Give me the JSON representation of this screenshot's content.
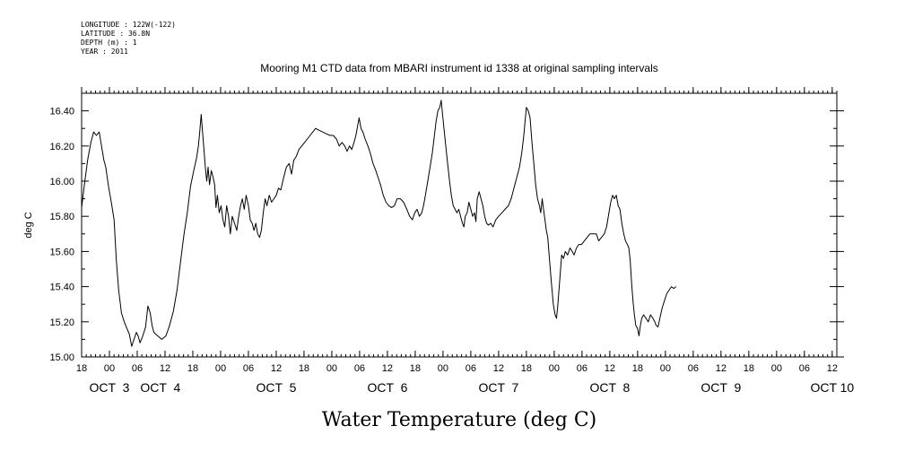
{
  "header": {
    "longitude": "LONGITUDE : 122W(-122)",
    "latitude": "LATITUDE : 36.8N",
    "depth": "DEPTH (m) : 1",
    "year": "YEAR : 2011"
  },
  "chart_data": {
    "type": "line",
    "title": "Mooring M1 CTD data from MBARI instrument id 1338 at original sampling intervals",
    "xlabel": "Water Temperature (deg C)",
    "ylabel": "deg C",
    "x_unit": "hours since OCT 2 00:00 (2011)",
    "xlim": [
      18,
      181
    ],
    "ylim": [
      15.0,
      16.5
    ],
    "y_ticks": [
      15.0,
      15.2,
      15.4,
      15.6,
      15.8,
      16.0,
      16.2,
      16.4
    ],
    "y_tick_labels": [
      "15.00",
      "15.20",
      "15.40",
      "15.60",
      "15.80",
      "16.00",
      "16.20",
      "16.40"
    ],
    "x_hour_ticks": [
      18,
      24,
      30,
      36,
      42,
      48,
      54,
      60,
      66,
      72,
      78,
      84,
      90,
      96,
      102,
      108,
      114,
      120,
      126,
      132,
      138,
      144,
      150,
      156,
      162,
      168,
      174,
      180
    ],
    "x_hour_tick_labels": [
      "18",
      "00",
      "06",
      "12",
      "18",
      "00",
      "06",
      "12",
      "18",
      "00",
      "06",
      "12",
      "18",
      "00",
      "06",
      "12",
      "18",
      "00",
      "06",
      "12",
      "18",
      "00",
      "06",
      "12",
      "18",
      "00",
      "06",
      "12"
    ],
    "day_labels": [
      {
        "label": "OCT  3",
        "x": 24
      },
      {
        "label": "OCT  4",
        "x": 35
      },
      {
        "label": "OCT  5",
        "x": 60
      },
      {
        "label": "OCT  6",
        "x": 84
      },
      {
        "label": "OCT  7",
        "x": 108
      },
      {
        "label": "OCT  8",
        "x": 132
      },
      {
        "label": "OCT  9",
        "x": 156
      },
      {
        "label": "OCT 10",
        "x": 180
      }
    ],
    "grid": false,
    "series": [
      {
        "points": [
          [
            18.0,
            15.85
          ],
          [
            18.6,
            15.98
          ],
          [
            19.3,
            16.12
          ],
          [
            20.0,
            16.22
          ],
          [
            20.6,
            16.28
          ],
          [
            21.2,
            16.26
          ],
          [
            21.8,
            16.28
          ],
          [
            22.3,
            16.2
          ],
          [
            22.8,
            16.12
          ],
          [
            23.2,
            16.08
          ],
          [
            23.8,
            15.97
          ],
          [
            24.4,
            15.88
          ],
          [
            25.0,
            15.78
          ],
          [
            25.5,
            15.55
          ],
          [
            26.0,
            15.38
          ],
          [
            26.6,
            15.25
          ],
          [
            27.2,
            15.2
          ],
          [
            27.8,
            15.16
          ],
          [
            28.3,
            15.13
          ],
          [
            28.8,
            15.06
          ],
          [
            29.3,
            15.1
          ],
          [
            29.8,
            15.14
          ],
          [
            30.2,
            15.12
          ],
          [
            30.6,
            15.08
          ],
          [
            31.2,
            15.12
          ],
          [
            31.8,
            15.17
          ],
          [
            32.3,
            15.29
          ],
          [
            32.8,
            15.25
          ],
          [
            33.2,
            15.18
          ],
          [
            33.6,
            15.14
          ],
          [
            34.4,
            15.12
          ],
          [
            35.3,
            15.1
          ],
          [
            36.2,
            15.12
          ],
          [
            37.0,
            15.18
          ],
          [
            37.8,
            15.26
          ],
          [
            38.6,
            15.38
          ],
          [
            39.4,
            15.55
          ],
          [
            40.1,
            15.7
          ],
          [
            40.8,
            15.82
          ],
          [
            41.5,
            15.97
          ],
          [
            42.2,
            16.06
          ],
          [
            42.8,
            16.13
          ],
          [
            43.2,
            16.2
          ],
          [
            43.5,
            16.28
          ],
          [
            43.8,
            16.38
          ],
          [
            44.1,
            16.28
          ],
          [
            44.4,
            16.18
          ],
          [
            44.7,
            16.08
          ],
          [
            45.0,
            16.0
          ],
          [
            45.3,
            16.08
          ],
          [
            45.6,
            15.98
          ],
          [
            46.0,
            16.06
          ],
          [
            46.4,
            16.02
          ],
          [
            46.7,
            15.98
          ],
          [
            47.0,
            15.85
          ],
          [
            47.3,
            15.92
          ],
          [
            47.7,
            15.82
          ],
          [
            48.1,
            15.86
          ],
          [
            48.5,
            15.78
          ],
          [
            48.9,
            15.74
          ],
          [
            49.3,
            15.86
          ],
          [
            49.7,
            15.8
          ],
          [
            50.1,
            15.7
          ],
          [
            50.5,
            15.8
          ],
          [
            51.0,
            15.76
          ],
          [
            51.5,
            15.72
          ],
          [
            51.9,
            15.8
          ],
          [
            52.3,
            15.86
          ],
          [
            52.7,
            15.9
          ],
          [
            53.1,
            15.84
          ],
          [
            53.5,
            15.92
          ],
          [
            54.0,
            15.86
          ],
          [
            54.4,
            15.78
          ],
          [
            54.8,
            15.76
          ],
          [
            55.2,
            15.72
          ],
          [
            55.6,
            15.76
          ],
          [
            56.0,
            15.7
          ],
          [
            56.4,
            15.68
          ],
          [
            56.8,
            15.72
          ],
          [
            57.2,
            15.82
          ],
          [
            57.6,
            15.9
          ],
          [
            58.0,
            15.86
          ],
          [
            58.5,
            15.92
          ],
          [
            59.0,
            15.88
          ],
          [
            59.5,
            15.9
          ],
          [
            60.0,
            15.92
          ],
          [
            60.5,
            15.96
          ],
          [
            61.0,
            15.95
          ],
          [
            61.6,
            16.02
          ],
          [
            62.2,
            16.08
          ],
          [
            62.8,
            16.1
          ],
          [
            63.3,
            16.04
          ],
          [
            63.8,
            16.12
          ],
          [
            64.3,
            16.14
          ],
          [
            64.9,
            16.18
          ],
          [
            65.5,
            16.2
          ],
          [
            66.1,
            16.22
          ],
          [
            66.7,
            16.24
          ],
          [
            67.3,
            16.26
          ],
          [
            67.9,
            16.28
          ],
          [
            68.5,
            16.3
          ],
          [
            69.2,
            16.29
          ],
          [
            70.0,
            16.28
          ],
          [
            70.8,
            16.27
          ],
          [
            71.6,
            16.26
          ],
          [
            72.3,
            16.26
          ],
          [
            73.0,
            16.24
          ],
          [
            73.6,
            16.2
          ],
          [
            74.2,
            16.22
          ],
          [
            74.8,
            16.2
          ],
          [
            75.3,
            16.17
          ],
          [
            75.8,
            16.2
          ],
          [
            76.3,
            16.18
          ],
          [
            76.8,
            16.22
          ],
          [
            77.2,
            16.26
          ],
          [
            77.6,
            16.32
          ],
          [
            77.9,
            16.36
          ],
          [
            78.3,
            16.3
          ],
          [
            78.7,
            16.28
          ],
          [
            79.2,
            16.24
          ],
          [
            79.8,
            16.2
          ],
          [
            80.3,
            16.16
          ],
          [
            80.9,
            16.1
          ],
          [
            81.5,
            16.06
          ],
          [
            82.0,
            16.02
          ],
          [
            82.5,
            15.98
          ],
          [
            83.1,
            15.92
          ],
          [
            83.7,
            15.88
          ],
          [
            84.3,
            15.86
          ],
          [
            84.9,
            15.85
          ],
          [
            85.5,
            15.86
          ],
          [
            86.1,
            15.9
          ],
          [
            86.8,
            15.9
          ],
          [
            87.5,
            15.88
          ],
          [
            88.2,
            15.84
          ],
          [
            88.8,
            15.8
          ],
          [
            89.4,
            15.78
          ],
          [
            89.9,
            15.82
          ],
          [
            90.4,
            15.84
          ],
          [
            90.9,
            15.8
          ],
          [
            91.4,
            15.82
          ],
          [
            91.8,
            15.86
          ],
          [
            92.2,
            15.92
          ],
          [
            92.7,
            16.0
          ],
          [
            93.2,
            16.08
          ],
          [
            93.7,
            16.16
          ],
          [
            94.1,
            16.25
          ],
          [
            94.5,
            16.34
          ],
          [
            94.9,
            16.4
          ],
          [
            95.3,
            16.42
          ],
          [
            95.6,
            16.46
          ],
          [
            95.9,
            16.38
          ],
          [
            96.2,
            16.3
          ],
          [
            96.6,
            16.2
          ],
          [
            97.0,
            16.1
          ],
          [
            97.4,
            16.0
          ],
          [
            97.8,
            15.92
          ],
          [
            98.2,
            15.86
          ],
          [
            98.6,
            15.84
          ],
          [
            99.0,
            15.82
          ],
          [
            99.4,
            15.84
          ],
          [
            99.8,
            15.8
          ],
          [
            100.2,
            15.76
          ],
          [
            100.5,
            15.74
          ],
          [
            100.8,
            15.8
          ],
          [
            101.2,
            15.82
          ],
          [
            101.6,
            15.88
          ],
          [
            102.0,
            15.84
          ],
          [
            102.4,
            15.8
          ],
          [
            102.8,
            15.82
          ],
          [
            103.1,
            15.77
          ],
          [
            103.4,
            15.9
          ],
          [
            103.8,
            15.94
          ],
          [
            104.2,
            15.9
          ],
          [
            104.6,
            15.86
          ],
          [
            105.0,
            15.8
          ],
          [
            105.4,
            15.76
          ],
          [
            105.8,
            15.75
          ],
          [
            106.3,
            15.76
          ],
          [
            106.8,
            15.74
          ],
          [
            107.4,
            15.78
          ],
          [
            108.0,
            15.8
          ],
          [
            108.7,
            15.82
          ],
          [
            109.4,
            15.84
          ],
          [
            110.1,
            15.86
          ],
          [
            110.7,
            15.9
          ],
          [
            111.3,
            15.96
          ],
          [
            111.9,
            16.02
          ],
          [
            112.5,
            16.08
          ],
          [
            113.0,
            16.16
          ],
          [
            113.4,
            16.25
          ],
          [
            113.7,
            16.34
          ],
          [
            114.0,
            16.42
          ],
          [
            114.4,
            16.4
          ],
          [
            114.8,
            16.36
          ],
          [
            115.2,
            16.22
          ],
          [
            115.6,
            16.1
          ],
          [
            116.0,
            15.98
          ],
          [
            116.4,
            15.9
          ],
          [
            116.8,
            15.86
          ],
          [
            117.1,
            15.82
          ],
          [
            117.4,
            15.9
          ],
          [
            117.7,
            15.84
          ],
          [
            118.0,
            15.78
          ],
          [
            118.3,
            15.72
          ],
          [
            118.6,
            15.68
          ],
          [
            119.0,
            15.55
          ],
          [
            119.4,
            15.42
          ],
          [
            119.8,
            15.3
          ],
          [
            120.2,
            15.24
          ],
          [
            120.5,
            15.22
          ],
          [
            120.8,
            15.3
          ],
          [
            121.2,
            15.44
          ],
          [
            121.6,
            15.58
          ],
          [
            122.0,
            15.56
          ],
          [
            122.4,
            15.6
          ],
          [
            122.9,
            15.58
          ],
          [
            123.4,
            15.62
          ],
          [
            123.9,
            15.6
          ],
          [
            124.3,
            15.58
          ],
          [
            124.8,
            15.62
          ],
          [
            125.3,
            15.64
          ],
          [
            125.9,
            15.64
          ],
          [
            126.5,
            15.66
          ],
          [
            127.1,
            15.68
          ],
          [
            127.7,
            15.7
          ],
          [
            128.4,
            15.7
          ],
          [
            129.1,
            15.7
          ],
          [
            129.6,
            15.66
          ],
          [
            130.2,
            15.68
          ],
          [
            130.8,
            15.7
          ],
          [
            131.3,
            15.74
          ],
          [
            131.8,
            15.82
          ],
          [
            132.2,
            15.88
          ],
          [
            132.6,
            15.92
          ],
          [
            133.0,
            15.9
          ],
          [
            133.4,
            15.92
          ],
          [
            133.8,
            15.86
          ],
          [
            134.2,
            15.84
          ],
          [
            134.6,
            15.76
          ],
          [
            135.0,
            15.7
          ],
          [
            135.4,
            15.66
          ],
          [
            135.8,
            15.64
          ],
          [
            136.1,
            15.62
          ],
          [
            136.4,
            15.55
          ],
          [
            136.7,
            15.42
          ],
          [
            137.0,
            15.32
          ],
          [
            137.3,
            15.24
          ],
          [
            137.6,
            15.18
          ],
          [
            138.0,
            15.16
          ],
          [
            138.3,
            15.12
          ],
          [
            138.6,
            15.18
          ],
          [
            138.9,
            15.22
          ],
          [
            139.3,
            15.24
          ],
          [
            139.8,
            15.22
          ],
          [
            140.3,
            15.2
          ],
          [
            140.8,
            15.24
          ],
          [
            141.3,
            15.22
          ],
          [
            141.7,
            15.2
          ],
          [
            142.0,
            15.18
          ],
          [
            142.4,
            15.17
          ],
          [
            142.8,
            15.22
          ],
          [
            143.3,
            15.28
          ],
          [
            143.8,
            15.32
          ],
          [
            144.3,
            15.36
          ],
          [
            144.8,
            15.38
          ],
          [
            145.3,
            15.4
          ],
          [
            145.8,
            15.39
          ],
          [
            146.3,
            15.4
          ]
        ]
      }
    ]
  }
}
